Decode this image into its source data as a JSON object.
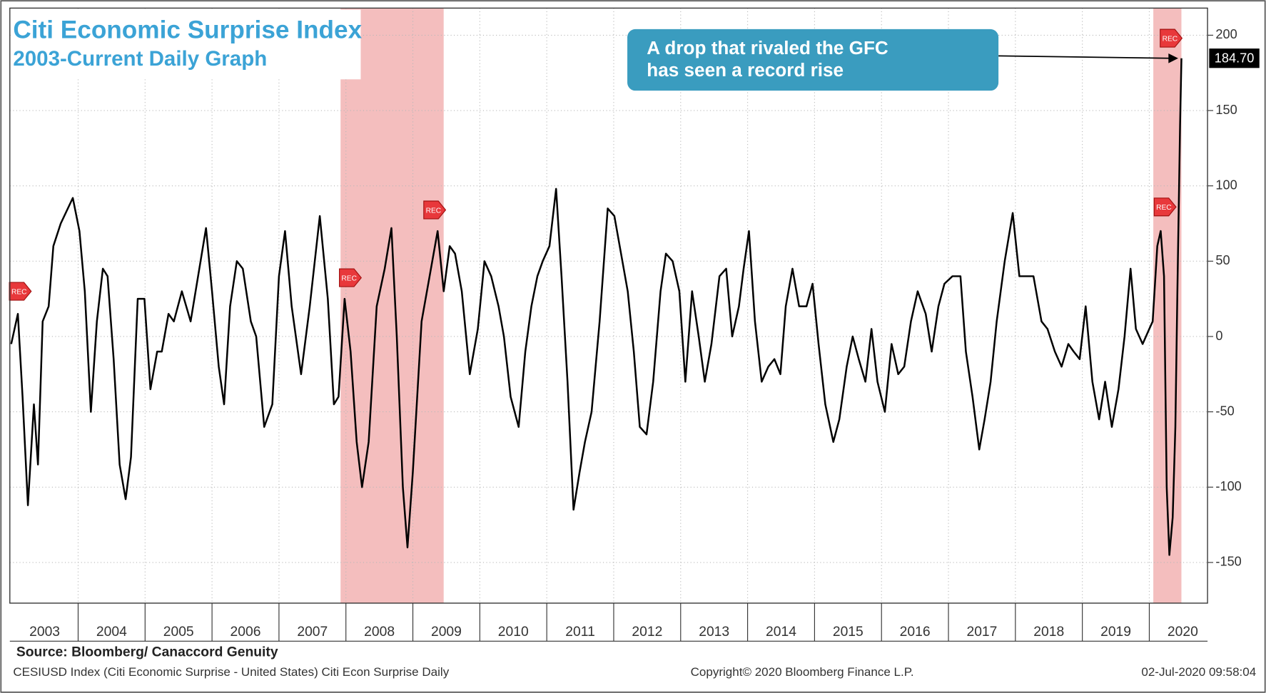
{
  "chart_data": {
    "type": "line",
    "title": "Citi Economic Surprise Index",
    "subtitle": "2003-Current Daily Graph",
    "annotation": [
      "A drop that rivaled the GFC",
      "has seen a record rise"
    ],
    "last_label": "184.70",
    "source": "Source: Bloomberg/ Canaccord Genuity",
    "footer_left": "CESIUSD Index (Citi Economic Surprise - United States) Citi Econ Surprise  Daily",
    "footer_center": "Copyright© 2020 Bloomberg Finance L.P.",
    "footer_right": "02-Jul-2020 09:58:04",
    "color": "#000000",
    "recession_color": "#f2b3b3",
    "recessions": [
      {
        "start": 2007.92,
        "end": 2009.46
      },
      {
        "start": 2020.06,
        "end": 2020.48
      }
    ],
    "rec_markers": [
      {
        "x": 2003.13,
        "y": 30,
        "label": "REC"
      },
      {
        "x": 2008.06,
        "y": 39,
        "label": "REC"
      },
      {
        "x": 2009.32,
        "y": 84,
        "label": "REC"
      },
      {
        "x": 2020.23,
        "y": 86,
        "label": "REC"
      },
      {
        "x": 2020.32,
        "y": 198,
        "label": "REC"
      }
    ],
    "xlim": [
      2002.98,
      2020.87
    ],
    "ylim": [
      -177,
      218
    ],
    "xticks": [
      2003,
      2004,
      2005,
      2006,
      2007,
      2008,
      2009,
      2010,
      2011,
      2012,
      2013,
      2014,
      2015,
      2016,
      2017,
      2018,
      2019,
      2020
    ],
    "yticks": [
      -150,
      -100,
      -50,
      0,
      50,
      100,
      150,
      200
    ],
    "grid": true,
    "x": [
      2003.0,
      2003.1,
      2003.17,
      2003.25,
      2003.34,
      2003.4,
      2003.47,
      2003.56,
      2003.63,
      2003.74,
      2003.92,
      2004.02,
      2004.1,
      2004.19,
      2004.28,
      2004.37,
      2004.44,
      2004.53,
      2004.62,
      2004.71,
      2004.79,
      2004.89,
      2004.99,
      2005.08,
      2005.18,
      2005.25,
      2005.35,
      2005.43,
      2005.55,
      2005.68,
      2005.91,
      2006.0,
      2006.1,
      2006.18,
      2006.27,
      2006.37,
      2006.46,
      2006.58,
      2006.66,
      2006.78,
      2006.9,
      2007.0,
      2007.09,
      2007.19,
      2007.33,
      2007.46,
      2007.61,
      2007.73,
      2007.82,
      2007.89,
      2007.98,
      2008.07,
      2008.16,
      2008.24,
      2008.34,
      2008.46,
      2008.58,
      2008.68,
      2008.76,
      2008.85,
      2008.92,
      2009.0,
      2009.13,
      2009.25,
      2009.37,
      2009.46,
      2009.55,
      2009.63,
      2009.73,
      2009.85,
      2009.97,
      2010.07,
      2010.17,
      2010.28,
      2010.36,
      2010.46,
      2010.58,
      2010.68,
      2010.77,
      2010.86,
      2010.94,
      2011.04,
      2011.14,
      2011.22,
      2011.31,
      2011.4,
      2011.49,
      2011.57,
      2011.67,
      2011.79,
      2011.91,
      2012.01,
      2012.09,
      2012.21,
      2012.3,
      2012.39,
      2012.49,
      2012.59,
      2012.7,
      2012.78,
      2012.88,
      2012.98,
      2013.07,
      2013.17,
      2013.27,
      2013.36,
      2013.46,
      2013.58,
      2013.68,
      2013.77,
      2013.87,
      2013.94,
      2014.02,
      2014.11,
      2014.21,
      2014.31,
      2014.4,
      2014.49,
      2014.57,
      2014.67,
      2014.77,
      2014.88,
      2014.97,
      2015.06,
      2015.16,
      2015.28,
      2015.37,
      2015.48,
      2015.57,
      2015.66,
      2015.76,
      2015.85,
      2015.94,
      2016.05,
      2016.15,
      2016.25,
      2016.34,
      2016.44,
      2016.54,
      2016.66,
      2016.75,
      2016.85,
      2016.94,
      2017.06,
      2017.18,
      2017.26,
      2017.36,
      2017.46,
      2017.54,
      2017.63,
      2017.72,
      2017.84,
      2017.96,
      2018.06,
      2018.15,
      2018.27,
      2018.39,
      2018.48,
      2018.59,
      2018.69,
      2018.79,
      2018.87,
      2018.96,
      2019.05,
      2019.15,
      2019.25,
      2019.34,
      2019.44,
      2019.54,
      2019.63,
      2019.72,
      2019.8,
      2019.9,
      2020.0,
      2020.05,
      2020.12,
      2020.17,
      2020.22,
      2020.26,
      2020.3,
      2020.35,
      2020.39,
      2020.42,
      2020.46,
      2020.48
    ],
    "values": [
      -5,
      15,
      -40,
      -112,
      -45,
      -85,
      10,
      20,
      60,
      75,
      92,
      70,
      30,
      -50,
      10,
      45,
      40,
      -15,
      -85,
      -108,
      -80,
      25,
      25,
      -35,
      -10,
      -10,
      15,
      10,
      30,
      10,
      72,
      30,
      -20,
      -45,
      20,
      50,
      45,
      10,
      0,
      -60,
      -45,
      40,
      70,
      20,
      -25,
      20,
      80,
      25,
      -45,
      -40,
      25,
      -10,
      -70,
      -100,
      -70,
      20,
      45,
      72,
      0,
      -100,
      -140,
      -90,
      10,
      40,
      70,
      30,
      60,
      55,
      30,
      -25,
      5,
      50,
      40,
      20,
      0,
      -40,
      -60,
      -10,
      20,
      40,
      50,
      60,
      98,
      40,
      -30,
      -115,
      -90,
      -70,
      -50,
      10,
      85,
      80,
      60,
      30,
      -10,
      -60,
      -65,
      -30,
      30,
      55,
      50,
      30,
      -30,
      30,
      0,
      -30,
      -5,
      40,
      45,
      0,
      20,
      45,
      70,
      10,
      -30,
      -20,
      -15,
      -25,
      20,
      45,
      20,
      20,
      35,
      -5,
      -45,
      -70,
      -55,
      -20,
      0,
      -15,
      -30,
      5,
      -30,
      -50,
      -5,
      -25,
      -20,
      10,
      30,
      15,
      -10,
      20,
      35,
      40,
      40,
      -10,
      -40,
      -75,
      -55,
      -30,
      10,
      50,
      82,
      40,
      40,
      40,
      10,
      5,
      -10,
      -20,
      -5,
      -10,
      -15,
      20,
      -30,
      -55,
      -30,
      -60,
      -35,
      0,
      45,
      5,
      -5,
      5,
      10,
      60,
      70,
      40,
      -100,
      -145,
      -120,
      -60,
      30,
      140,
      184.7
    ]
  }
}
